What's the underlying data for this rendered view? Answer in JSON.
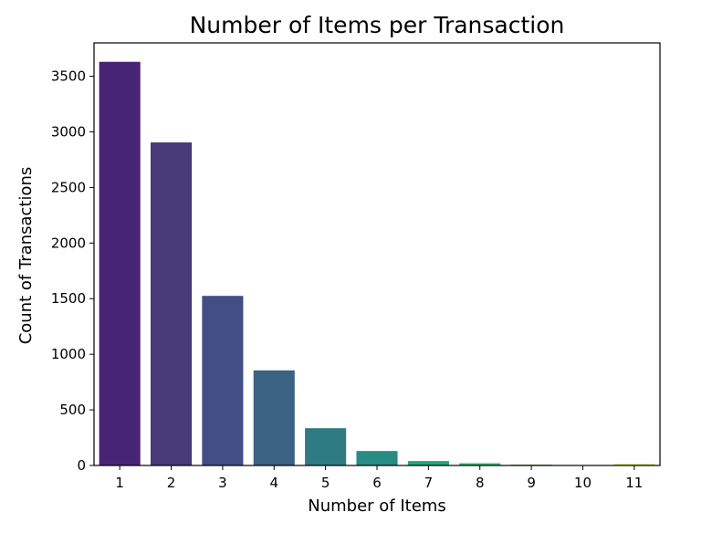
{
  "chart_data": {
    "type": "bar",
    "title": "Number of Items per Transaction",
    "xlabel": "Number of Items",
    "ylabel": "Count of Transactions",
    "categories": [
      "1",
      "2",
      "3",
      "4",
      "5",
      "6",
      "7",
      "8",
      "9",
      "10",
      "11"
    ],
    "values": [
      3630,
      2905,
      1525,
      855,
      335,
      130,
      40,
      20,
      8,
      3,
      12
    ],
    "colors": [
      "#482475",
      "#463a78",
      "#414f86",
      "#3b6183",
      "#2e7b84",
      "#278c83",
      "#22a57d",
      "#38b675",
      "#51bc68",
      "#87cf4a",
      "#b9d526"
    ],
    "yticks": [
      0,
      500,
      1000,
      1500,
      2000,
      2500,
      3000,
      3500
    ],
    "ylim": [
      0,
      3800
    ],
    "grid": false,
    "legend": "none"
  }
}
